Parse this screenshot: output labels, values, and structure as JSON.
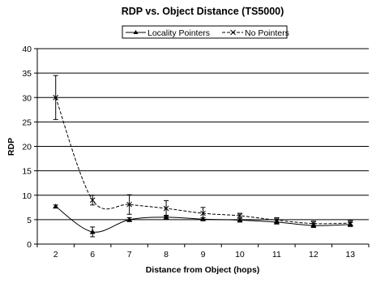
{
  "chart_data": {
    "type": "line",
    "title": "RDP vs. Object Distance (TS5000)",
    "xlabel": "Distance from Object (hops)",
    "ylabel": "RDP",
    "categories": [
      "2",
      "6",
      "7",
      "8",
      "9",
      "10",
      "11",
      "12",
      "13"
    ],
    "ylim": [
      0,
      40
    ],
    "yticks": [
      0,
      5,
      10,
      15,
      20,
      25,
      30,
      35,
      40
    ],
    "grid": "horizontal",
    "legend_position": "top",
    "series": [
      {
        "name": "Locality Pointers",
        "marker": "triangle",
        "line_style": "solid",
        "color": "#000000",
        "values": [
          7.7,
          2.5,
          5.0,
          5.5,
          5.1,
          4.9,
          4.5,
          3.8,
          4.0
        ],
        "error": [
          0.3,
          1.0,
          0.4,
          0.4,
          0.3,
          0.4,
          0.4,
          0.4,
          0.4
        ]
      },
      {
        "name": "No Pointers",
        "marker": "x",
        "line_style": "dashed",
        "color": "#000000",
        "values": [
          30.0,
          9.0,
          8.1,
          7.3,
          6.3,
          5.8,
          4.9,
          4.2,
          4.3
        ],
        "error": [
          4.5,
          1.0,
          2.0,
          1.6,
          1.2,
          0.5,
          0.5,
          0.5,
          0.5
        ]
      }
    ]
  }
}
